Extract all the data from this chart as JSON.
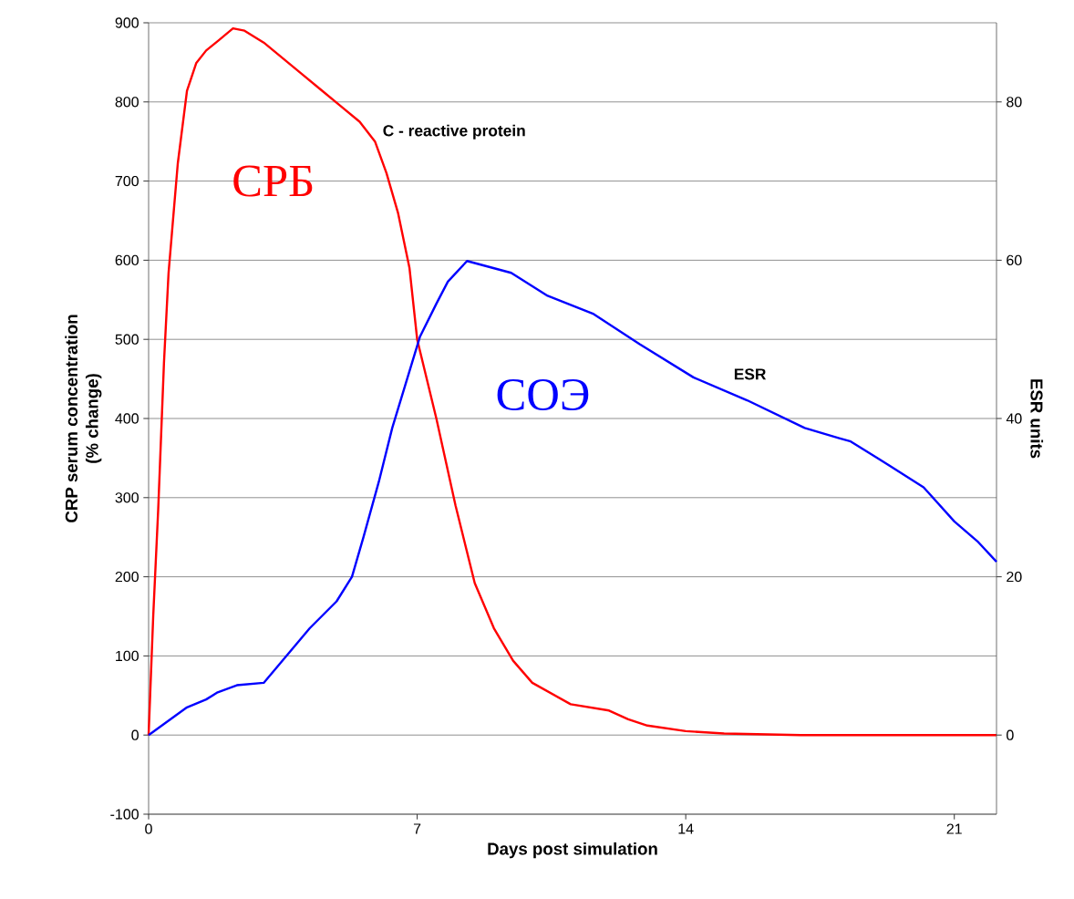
{
  "chart_data": {
    "type": "line",
    "xlabel": "Days post simulation",
    "ylabel": "CRP serum concentration\n(% change)",
    "y2label": "ESR units",
    "xlim": [
      0,
      22.1
    ],
    "xticks": [
      0,
      7,
      14,
      21
    ],
    "ylim": [
      -100,
      900
    ],
    "yticks": [
      -100,
      0,
      100,
      200,
      300,
      400,
      500,
      600,
      700,
      800,
      900
    ],
    "y2lim": [
      -10,
      90
    ],
    "y2ticks": [
      0,
      20,
      40,
      60,
      80
    ],
    "grid": "y",
    "series": [
      {
        "name": "СРБ",
        "color": "#ff0000",
        "x": [
          0,
          0.12,
          0.25,
          0.4,
          0.52,
          0.76,
          1.0,
          1.24,
          1.5,
          1.83,
          2.2,
          2.5,
          3.0,
          3.5,
          4.0,
          4.5,
          5.0,
          5.5,
          5.9,
          6.2,
          6.5,
          6.8,
          7.0,
          7.5,
          8.0,
          8.5,
          9.0,
          9.5,
          10.0,
          11.0,
          12.0,
          12.5,
          13.0,
          14.0,
          15.0,
          17.0,
          19.0,
          22.1
        ],
        "values": [
          0,
          150,
          285,
          470,
          584,
          722,
          814,
          849,
          865,
          878,
          893,
          890,
          875,
          855,
          835,
          815,
          795,
          775,
          750,
          710,
          660,
          590,
          500,
          400,
          290,
          192,
          135,
          94,
          66,
          39,
          31,
          20,
          12,
          5,
          2,
          0,
          0,
          0
        ]
      },
      {
        "name": "СОЭ",
        "color": "#0000ff",
        "axis": "y2",
        "x": [
          0,
          1.0,
          1.5,
          1.8,
          2.3,
          3.0,
          3.4,
          4.2,
          4.9,
          5.3,
          5.6,
          6.0,
          6.35,
          7.07,
          7.5,
          7.8,
          8.3,
          9.45,
          10.4,
          11.6,
          12.8,
          14.2,
          15.6,
          17.1,
          18.0,
          18.3,
          19.0,
          20.2,
          21.0,
          21.6,
          22.1
        ],
        "values": [
          0,
          3.5,
          4.5,
          5.4,
          6.3,
          6.6,
          8.9,
          13.5,
          16.9,
          20,
          25,
          32,
          38.8,
          50.3,
          54.5,
          57.3,
          59.9,
          58.4,
          55.5,
          53.2,
          49.4,
          45.2,
          42.3,
          38.8,
          37.5,
          37.1,
          35,
          31.3,
          27,
          24.5,
          21.9
        ]
      }
    ],
    "annotations": [
      "C - reactive protein",
      "ESR"
    ]
  }
}
